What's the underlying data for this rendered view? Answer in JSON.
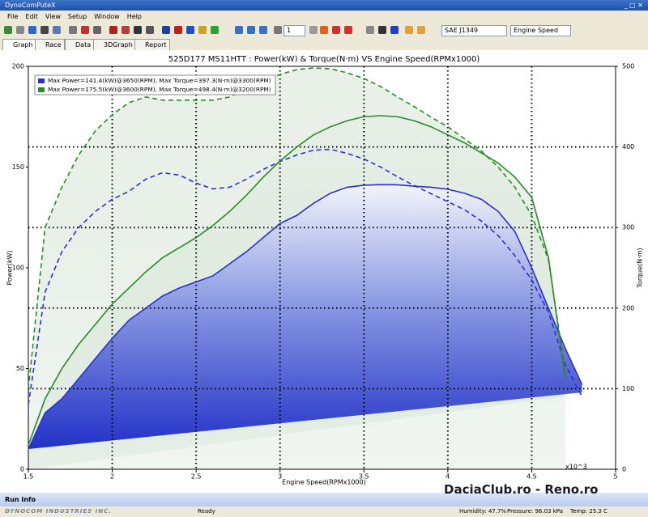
{
  "window": {
    "title": "DynoComPuteX",
    "menu": [
      "File",
      "Edit",
      "View",
      "Setup",
      "Window",
      "Help"
    ],
    "toolbar": {
      "count": "1",
      "standard": "SAE J1349",
      "x_axis": "Engine Speed"
    },
    "tabs": [
      "Graph",
      "Race",
      "Data",
      "3DGraph",
      "Report"
    ],
    "run_info": "Run Info",
    "logo": "DYNOCOM INDUSTRIES INC.",
    "status": "Ready",
    "humidity": "Humidity: 47.7%",
    "pressure": "Pressure: 96.03 kPa",
    "temp": "Temp: 25.3 C",
    "watermark": "DaciaClub.ro - Reno.ro"
  },
  "chart_data": {
    "type": "line",
    "title": "525D177 MS11HTT  : Power(kW) & Torque(N·m) VS Engine Speed(RPMx1000)",
    "x_label": "Engine Speed(RPMx1000)",
    "x_unit": "x10^3",
    "y_label": "Power(kW)",
    "y2_label": "Torque(N·m)",
    "x": [
      1.5,
      1.6,
      1.7,
      1.8,
      1.9,
      2.0,
      2.1,
      2.2,
      2.3,
      2.4,
      2.5,
      2.6,
      2.7,
      2.8,
      2.9,
      3.0,
      3.1,
      3.2,
      3.3,
      3.4,
      3.5,
      3.6,
      3.7,
      3.8,
      3.9,
      4.0,
      4.1,
      4.2,
      4.3,
      4.4,
      4.5,
      4.6,
      4.7,
      4.8
    ],
    "series": [
      {
        "name": "Max Power=141.4(kW)@3650(RPM), Max Torque=397.3(N·m)@3300(RPM)",
        "color": "#2b2fd0",
        "power": [
          10,
          28,
          35,
          45,
          55,
          65,
          74,
          80,
          86,
          90,
          93,
          96,
          102,
          108,
          115,
          122,
          126,
          132,
          137,
          140,
          141,
          141.3,
          141.2,
          140.5,
          140,
          139,
          137,
          134,
          128,
          118,
          100,
          80,
          60,
          42
        ],
        "torque": [
          80,
          220,
          270,
          300,
          320,
          335,
          345,
          360,
          368,
          365,
          355,
          348,
          350,
          360,
          372,
          382,
          390,
          396,
          397,
          392,
          385,
          375,
          363,
          352,
          342,
          332,
          322,
          308,
          290,
          265,
          235,
          195,
          130,
          90
        ]
      },
      {
        "name": "Max Power=175.5(kW)@3600(RPM), Max Torque=498.4(N·m)@3200(RPM)",
        "color": "#2a8a2a",
        "power": [
          12,
          35,
          50,
          62,
          72,
          82,
          90,
          98,
          105,
          110,
          115,
          121,
          128,
          136,
          145,
          153,
          160,
          166,
          170,
          173,
          175,
          175.5,
          175,
          173,
          170,
          166,
          162,
          157,
          152,
          145,
          135,
          105,
          45,
          null
        ],
        "torque": [
          100,
          300,
          350,
          390,
          420,
          440,
          455,
          462,
          458,
          458,
          458,
          458,
          462,
          472,
          482,
          490,
          496,
          498,
          497,
          492,
          485,
          475,
          462,
          450,
          437,
          425,
          410,
          395,
          375,
          350,
          315,
          260,
          120,
          null
        ]
      }
    ],
    "xlim": [
      1.5,
      5
    ],
    "xticks": [
      1.5,
      2,
      2.5,
      3,
      3.5,
      4,
      4.5,
      5
    ],
    "ylim": [
      0,
      200
    ],
    "yticks": [
      0,
      50,
      100,
      150,
      200
    ],
    "y2lim": [
      0,
      500
    ],
    "y2ticks": [
      0,
      100,
      200,
      300,
      400,
      500
    ],
    "grid": true
  }
}
